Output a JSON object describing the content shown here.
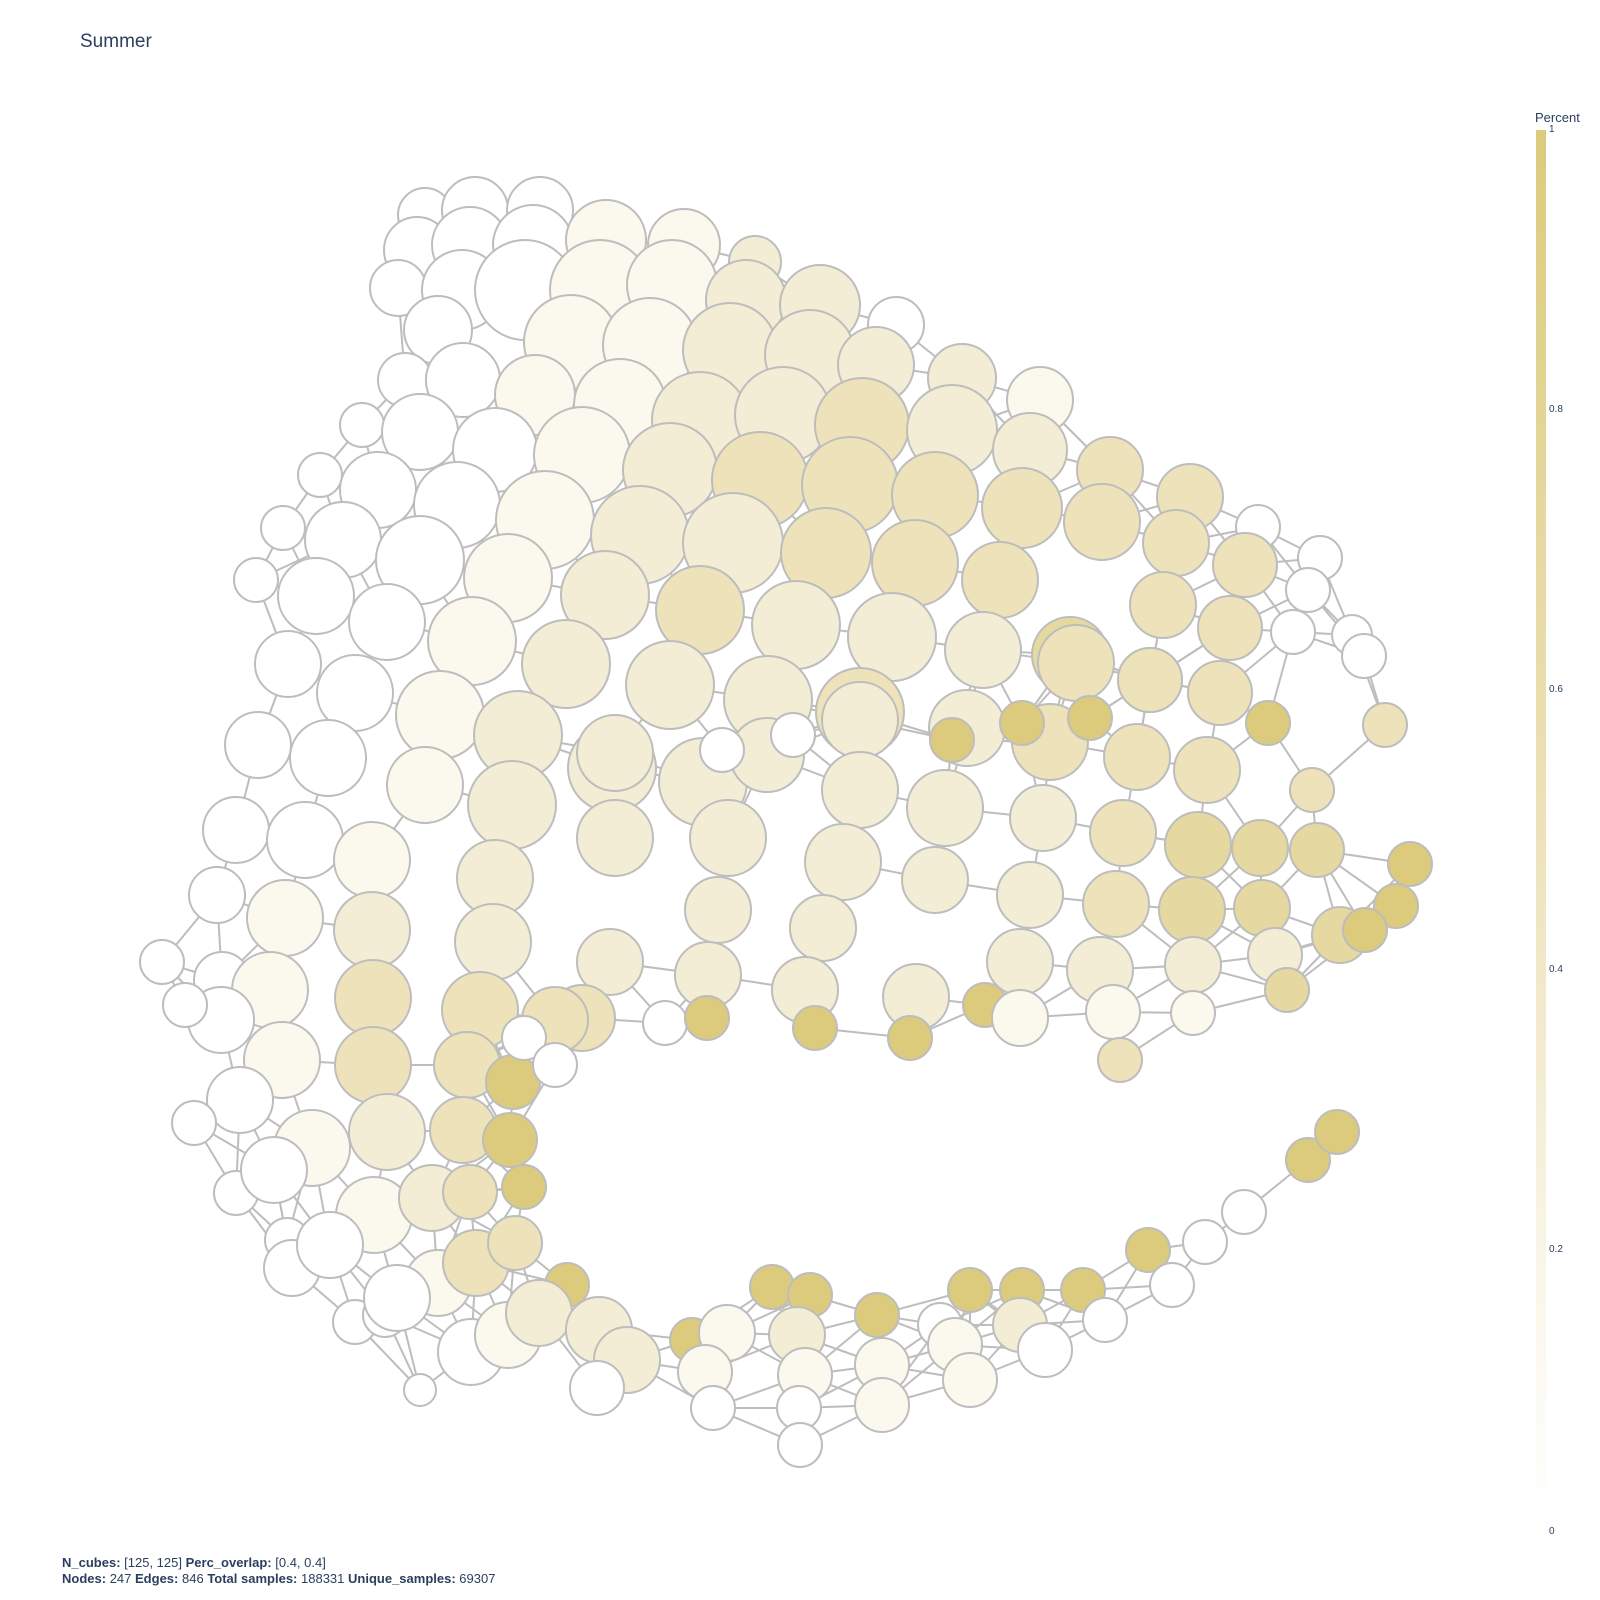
{
  "title": "Summer",
  "colorbar": {
    "title": "Percent",
    "ticks": [
      "1",
      "0.8",
      "0.6",
      "0.4",
      "0.2",
      "0"
    ],
    "colors": [
      "#ffffff",
      "#fbf8ee",
      "#f3edd5",
      "#ede2ba",
      "#e5d8a0",
      "#dccb7d"
    ]
  },
  "footer": {
    "n_cubes_label": "N_cubes:",
    "n_cubes": "[125, 125]",
    "perc_overlap_label": "Perc_overlap:",
    "perc_overlap": "[0.4, 0.4]",
    "nodes_label": "Nodes:",
    "nodes": "247",
    "edges_label": "Edges:",
    "edges": "846",
    "total_samples_label": "Total samples:",
    "total_samples": "188331",
    "unique_samples_label": "Unique_samples:",
    "unique_samples": "69307"
  },
  "style": {
    "edge_color": "#bdbdbd",
    "node_border": "#bdbdbd"
  }
}
